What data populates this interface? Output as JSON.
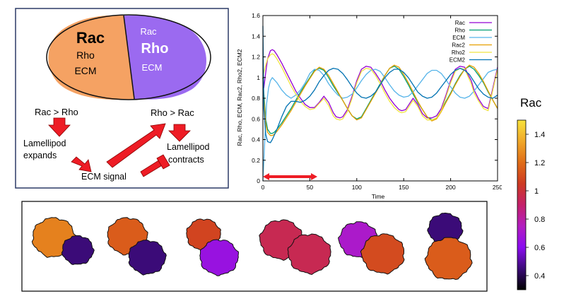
{
  "schematic": {
    "left_cell": {
      "title": "Rac",
      "line2": "Rho",
      "line3": "ECM"
    },
    "right_cell": {
      "line1": "Rac",
      "title": "Rho",
      "line3": "ECM"
    },
    "rac_gt_rho": "Rac > Rho",
    "rho_gt_rac": "Rho > Rac",
    "expands_line1": "Lamellipod",
    "expands_line2": "expands",
    "contracts_line1": "Lamellipod",
    "contracts_line2": "contracts",
    "ecm_signal": "ECM signal",
    "colors": {
      "rac_cell": "#f5a263",
      "rho_cell": "#9b6af0",
      "arrow": "#ee1c25"
    }
  },
  "chart_data": {
    "type": "line",
    "xlabel": "Time",
    "ylabel": "Rac, Rho, ECM, Rac2, Rho2, ECM2",
    "xlim": [
      0,
      250
    ],
    "ylim": [
      0,
      1.6
    ],
    "xticks": [
      0,
      50,
      100,
      150,
      200,
      250
    ],
    "yticks": [
      0,
      0.2,
      0.4,
      0.6,
      0.8,
      1,
      1.2,
      1.4,
      1.6
    ],
    "ytick_labels": [
      "0",
      "0.2",
      "0.4",
      "0.6",
      "0.8",
      "1",
      "1.2",
      "1.4",
      "1.6"
    ],
    "legend_position": "top-right",
    "highlight_interval": [
      0,
      58
    ],
    "series": [
      {
        "name": "Rac",
        "color": "#9400d3",
        "x": [
          0,
          1,
          3,
          5,
          8,
          10,
          12,
          15,
          20,
          25,
          30,
          35,
          40,
          45,
          50,
          55,
          60,
          65,
          70,
          75,
          78,
          82,
          85,
          90,
          95,
          100,
          105,
          110,
          115,
          120,
          125,
          130,
          135,
          140,
          145,
          148,
          152,
          155,
          160,
          165,
          170,
          175,
          180,
          185,
          190,
          195,
          200,
          205,
          210,
          215,
          218,
          222,
          225,
          230,
          235,
          240,
          245,
          250
        ],
        "y": [
          1.0,
          0.9,
          1.05,
          1.18,
          1.26,
          1.27,
          1.26,
          1.22,
          1.14,
          1.05,
          0.96,
          0.87,
          0.8,
          0.74,
          0.71,
          0.71,
          0.76,
          0.82,
          0.76,
          0.66,
          0.62,
          0.61,
          0.62,
          0.69,
          0.82,
          0.97,
          1.08,
          1.11,
          1.1,
          1.04,
          0.97,
          0.88,
          0.8,
          0.74,
          0.69,
          0.68,
          0.69,
          0.73,
          0.8,
          0.74,
          0.65,
          0.61,
          0.61,
          0.63,
          0.7,
          0.83,
          0.97,
          1.08,
          1.11,
          1.1,
          1.04,
          0.97,
          0.88,
          0.79,
          0.72,
          0.7,
          0.9,
          1.1
        ]
      },
      {
        "name": "Rho",
        "color": "#009e73",
        "x": [
          0,
          1,
          3,
          5,
          8,
          10,
          12,
          15,
          20,
          25,
          30,
          35,
          40,
          45,
          50,
          55,
          60,
          65,
          70,
          75,
          80,
          85,
          90,
          95,
          100,
          105,
          110,
          115,
          120,
          125,
          130,
          135,
          140,
          145,
          150,
          155,
          160,
          165,
          170,
          175,
          180,
          185,
          190,
          195,
          200,
          205,
          210,
          215,
          220,
          225,
          230,
          235,
          240,
          245,
          250
        ],
        "y": [
          1.0,
          0.85,
          0.6,
          0.5,
          0.46,
          0.46,
          0.47,
          0.5,
          0.56,
          0.63,
          0.7,
          0.78,
          0.86,
          0.93,
          1.0,
          1.07,
          1.09,
          1.07,
          1.0,
          0.92,
          0.85,
          0.78,
          0.7,
          0.63,
          0.6,
          0.62,
          0.7,
          0.78,
          0.86,
          0.94,
          1.02,
          1.09,
          1.11,
          1.08,
          1.01,
          0.93,
          0.84,
          0.76,
          0.69,
          0.62,
          0.59,
          0.61,
          0.68,
          0.77,
          0.85,
          0.94,
          1.02,
          1.08,
          1.11,
          1.08,
          1.02,
          0.95,
          0.86,
          0.78,
          0.7
        ]
      },
      {
        "name": "ECM",
        "color": "#56b4e9",
        "x": [
          0,
          2,
          4,
          6,
          8,
          10,
          15,
          20,
          25,
          30,
          35,
          40,
          45,
          50,
          55,
          60,
          65,
          70,
          75,
          80,
          85,
          90,
          95,
          100,
          105,
          110,
          115,
          120,
          125,
          130,
          135,
          140,
          145,
          150,
          155,
          160,
          165,
          170,
          175,
          180,
          185,
          190,
          195,
          200,
          205,
          210,
          215,
          220,
          225,
          230,
          235,
          240,
          245,
          250
        ],
        "y": [
          0.0,
          0.4,
          0.75,
          0.9,
          0.97,
          1.0,
          0.95,
          0.88,
          0.83,
          0.8,
          0.83,
          0.88,
          0.95,
          1.04,
          1.08,
          1.07,
          1.02,
          0.94,
          0.88,
          0.83,
          0.8,
          0.81,
          0.84,
          0.9,
          0.97,
          1.03,
          1.07,
          1.08,
          1.06,
          1.0,
          0.93,
          0.87,
          0.83,
          0.81,
          0.82,
          0.86,
          0.92,
          0.98,
          1.04,
          1.07,
          1.07,
          1.04,
          0.98,
          0.91,
          0.85,
          0.81,
          0.8,
          0.82,
          0.87,
          0.93,
          0.99,
          1.05,
          1.07,
          1.08
        ]
      },
      {
        "name": "Rac2",
        "color": "#e69f00",
        "x": [
          0,
          1,
          3,
          5,
          8,
          10,
          12,
          15,
          20,
          25,
          30,
          35,
          40,
          45,
          50,
          55,
          60,
          65,
          70,
          75,
          80,
          85,
          90,
          95,
          100,
          105,
          110,
          115,
          120,
          125,
          130,
          135,
          140,
          145,
          150,
          155,
          160,
          165,
          170,
          175,
          180,
          185,
          190,
          195,
          200,
          205,
          210,
          215,
          220,
          225,
          230,
          235,
          240,
          245,
          250
        ],
        "y": [
          1.0,
          0.8,
          0.55,
          0.47,
          0.44,
          0.44,
          0.45,
          0.48,
          0.54,
          0.61,
          0.68,
          0.76,
          0.84,
          0.92,
          0.99,
          1.06,
          1.1,
          1.08,
          1.02,
          0.94,
          0.86,
          0.78,
          0.7,
          0.63,
          0.59,
          0.61,
          0.69,
          0.77,
          0.85,
          0.93,
          1.02,
          1.09,
          1.12,
          1.1,
          1.03,
          0.95,
          0.86,
          0.77,
          0.69,
          0.62,
          0.58,
          0.6,
          0.67,
          0.76,
          0.84,
          0.93,
          1.01,
          1.08,
          1.12,
          1.1,
          1.04,
          0.96,
          0.87,
          0.78,
          0.7
        ]
      },
      {
        "name": "Rho2",
        "color": "#f0e442",
        "x": [
          0,
          1,
          3,
          5,
          8,
          10,
          12,
          15,
          20,
          25,
          30,
          35,
          40,
          45,
          50,
          55,
          60,
          65,
          70,
          75,
          78,
          82,
          85,
          90,
          95,
          100,
          105,
          110,
          115,
          120,
          125,
          130,
          135,
          140,
          145,
          148,
          152,
          155,
          160,
          165,
          170,
          175,
          180,
          185,
          190,
          195,
          200,
          205,
          210,
          215,
          218,
          222,
          225,
          230,
          235,
          240,
          245,
          250
        ],
        "y": [
          1.0,
          1.05,
          1.12,
          1.18,
          1.22,
          1.23,
          1.22,
          1.18,
          1.1,
          1.01,
          0.92,
          0.84,
          0.77,
          0.72,
          0.69,
          0.7,
          0.75,
          0.8,
          0.73,
          0.63,
          0.6,
          0.59,
          0.6,
          0.67,
          0.8,
          0.95,
          1.06,
          1.09,
          1.08,
          1.02,
          0.94,
          0.85,
          0.77,
          0.71,
          0.67,
          0.66,
          0.67,
          0.71,
          0.78,
          0.72,
          0.63,
          0.59,
          0.59,
          0.61,
          0.68,
          0.81,
          0.95,
          1.06,
          1.09,
          1.08,
          1.02,
          0.94,
          0.85,
          0.77,
          0.7,
          0.68,
          0.88,
          1.08
        ]
      },
      {
        "name": "ECM2",
        "color": "#0072b2",
        "x": [
          0,
          1,
          3,
          5,
          8,
          10,
          15,
          20,
          25,
          30,
          35,
          40,
          45,
          50,
          55,
          60,
          65,
          70,
          75,
          80,
          85,
          90,
          95,
          100,
          105,
          110,
          115,
          120,
          125,
          130,
          135,
          140,
          145,
          150,
          155,
          160,
          165,
          170,
          175,
          180,
          185,
          190,
          195,
          200,
          205,
          210,
          215,
          220,
          225,
          230,
          235,
          240,
          245,
          250
        ],
        "y": [
          1.5,
          0.7,
          0.45,
          0.38,
          0.37,
          0.4,
          0.5,
          0.62,
          0.72,
          0.77,
          0.77,
          0.76,
          0.78,
          0.82,
          0.88,
          0.96,
          1.02,
          1.07,
          1.09,
          1.08,
          1.04,
          0.98,
          0.91,
          0.85,
          0.81,
          0.8,
          0.82,
          0.86,
          0.93,
          1.0,
          1.05,
          1.08,
          1.08,
          1.05,
          1.0,
          0.93,
          0.86,
          0.82,
          0.8,
          0.81,
          0.85,
          0.91,
          0.97,
          1.03,
          1.07,
          1.09,
          1.07,
          1.03,
          0.96,
          0.89,
          0.84,
          0.81,
          0.8,
          0.83
        ]
      }
    ]
  },
  "colorbar": {
    "title": "Rac",
    "min": 0.3,
    "max": 1.5,
    "tick_values": [
      0.4,
      0.6,
      0.8,
      1,
      1.2,
      1.4
    ],
    "tick_labels": [
      "0.4",
      "0.6",
      "0.8",
      "1",
      "1.2",
      "1.4"
    ],
    "stops": [
      "#000000",
      "#3b0b78",
      "#8a0cf0",
      "#b31ec0",
      "#c4206a",
      "#cd3a22",
      "#e06d18",
      "#f0a82a",
      "#f8e23c"
    ]
  },
  "cell_strip": {
    "pairs": [
      {
        "left_rac": 1.25,
        "right_rac": 0.45
      },
      {
        "left_rac": 1.15,
        "right_rac": 0.45
      },
      {
        "left_rac": 1.08,
        "right_rac": 0.65
      },
      {
        "left_rac": 0.95,
        "right_rac": 0.95
      },
      {
        "left_rac": 0.72,
        "right_rac": 1.1
      },
      {
        "left_rac": 0.45,
        "right_rac": 1.15
      }
    ]
  }
}
